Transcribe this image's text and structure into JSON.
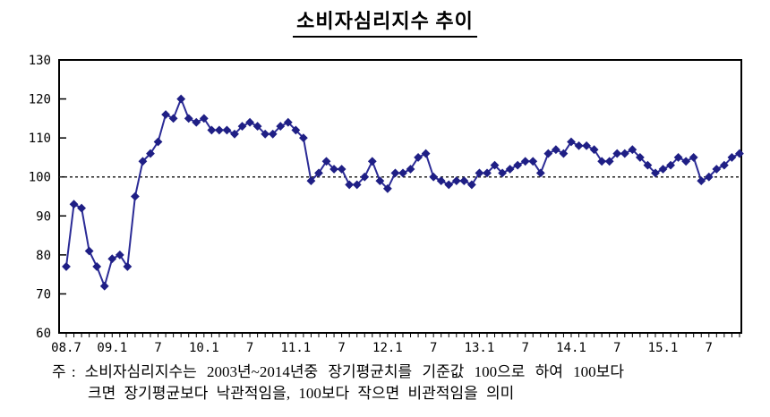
{
  "title": "소비자심리지수 추이",
  "footnote": {
    "prefix": "주 :",
    "line1": "소비자심리지수는 2003년~2014년중 장기평균치를 기준값 100으로 하여 100보다",
    "line2": "크면 장기평균보다 낙관적임을, 100보다 작으면 비관적임을 의미"
  },
  "chart_data": {
    "type": "line",
    "title": "소비자심리지수 추이",
    "series": [
      {
        "name": "소비자심리지수",
        "start": "2008.7",
        "frequency": "monthly",
        "values": [
          77,
          93,
          92,
          81,
          77,
          72,
          79,
          80,
          77,
          95,
          104,
          106,
          109,
          116,
          115,
          120,
          115,
          114,
          115,
          112,
          112,
          112,
          111,
          113,
          114,
          113,
          111,
          111,
          113,
          114,
          112,
          110,
          99,
          101,
          104,
          102,
          102,
          98,
          98,
          100,
          104,
          99,
          97,
          101,
          101,
          102,
          105,
          106,
          100,
          99,
          98,
          99,
          99,
          98,
          101,
          101,
          103,
          101,
          102,
          103,
          104,
          104,
          101,
          106,
          107,
          106,
          109,
          108,
          108,
          107,
          104,
          104,
          106,
          106,
          107,
          105,
          103,
          101,
          102,
          103,
          105,
          104,
          105,
          99,
          100,
          102,
          103,
          105,
          106
        ]
      }
    ],
    "x_tick_labels": [
      "08.7",
      "09.1",
      "7",
      "10.1",
      "7",
      "11.1",
      "7",
      "12.1",
      "7",
      "13.1",
      "7",
      "14.1",
      "7",
      "15.1",
      "7"
    ],
    "x_label_every_n_months": 6,
    "y_ticks": [
      60,
      70,
      80,
      90,
      100,
      110,
      120,
      130
    ],
    "ylim": [
      60,
      130
    ],
    "baseline": 100,
    "baseline_style": "dashed",
    "grid": false,
    "legend": "none",
    "marker": "diamond",
    "line_color": "#2b2b96",
    "marker_color": "#1f1f85",
    "frame_color": "#000000",
    "baseline_color": "#222222"
  }
}
